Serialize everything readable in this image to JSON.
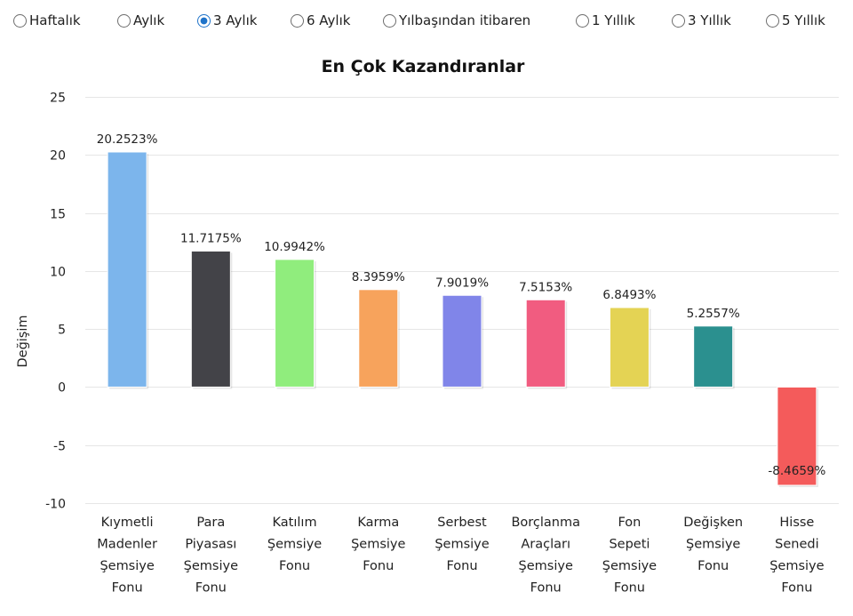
{
  "period_selector": {
    "options": [
      {
        "label": "Haftalık",
        "checked": false
      },
      {
        "label": "Aylık",
        "checked": false
      },
      {
        "label": "3 Aylık",
        "checked": true
      },
      {
        "label": "6 Aylık",
        "checked": false
      },
      {
        "label": "Yılbaşından itibaren",
        "checked": false
      },
      {
        "label": "1 Yıllık",
        "checked": false
      },
      {
        "label": "3 Yıllık",
        "checked": false
      },
      {
        "label": "5 Yıllık",
        "checked": false
      }
    ]
  },
  "chart_data": {
    "type": "bar",
    "title": "En Çok Kazandıranlar",
    "xlabel": "",
    "ylabel": "Değişim",
    "ylim": [
      -10,
      25
    ],
    "yticks": [
      25,
      20,
      15,
      10,
      5,
      0,
      -5,
      -10
    ],
    "ytick_labels": [
      "25",
      "20",
      "15",
      "10",
      "5",
      "0",
      "-5",
      "-10"
    ],
    "grid": true,
    "legend": "none",
    "categories": [
      "Kıymetli Madenler Şemsiye Fonu",
      "Para Piyasası Şemsiye Fonu",
      "Katılım Şemsiye Fonu",
      "Karma Şemsiye Fonu",
      "Serbest Şemsiye Fonu",
      "Borçlanma Araçları Şemsiye Fonu",
      "Fon Sepeti Şemsiye Fonu",
      "Değişken Şemsiye Fonu",
      "Hisse Senedi Şemsiye Fonu"
    ],
    "category_lines": [
      [
        "Kıymetli",
        "Madenler",
        "Şemsiye",
        "Fonu"
      ],
      [
        "Para",
        "Piyasası",
        "Şemsiye",
        "Fonu"
      ],
      [
        "Katılım",
        "Şemsiye",
        "Fonu"
      ],
      [
        "Karma",
        "Şemsiye",
        "Fonu"
      ],
      [
        "Serbest",
        "Şemsiye",
        "Fonu"
      ],
      [
        "Borçlanma",
        "Araçları",
        "Şemsiye",
        "Fonu"
      ],
      [
        "Fon",
        "Sepeti",
        "Şemsiye",
        "Fonu"
      ],
      [
        "Değişken",
        "Şemsiye",
        "Fonu"
      ],
      [
        "Hisse",
        "Senedi",
        "Şemsiye",
        "Fonu"
      ]
    ],
    "values": [
      20.2523,
      11.7175,
      10.9942,
      8.3959,
      7.9019,
      7.5153,
      6.8493,
      5.2557,
      -8.4659
    ],
    "value_labels": [
      "20.2523%",
      "11.7175%",
      "10.9942%",
      "8.3959%",
      "7.9019%",
      "7.5153%",
      "6.8493%",
      "5.2557%",
      "-8.4659%"
    ],
    "colors": [
      "#7cb5ec",
      "#434348",
      "#90ed7d",
      "#f7a35c",
      "#8085e9",
      "#f15c80",
      "#e4d354",
      "#2b908f",
      "#f45b5b"
    ]
  }
}
